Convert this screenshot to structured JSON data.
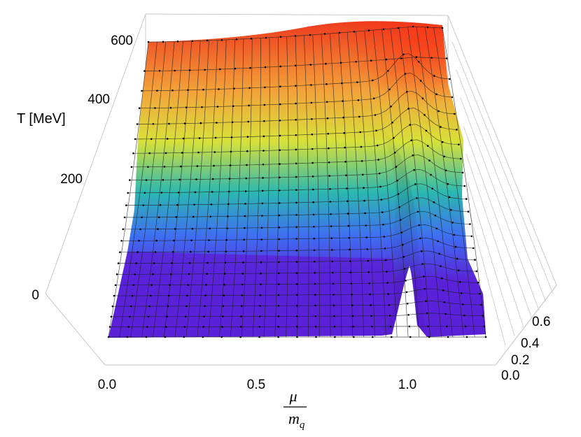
{
  "chart_data": {
    "type": "surface",
    "title": "",
    "zlabel": "T [MeV]",
    "xlabel_numerator": "μ",
    "xlabel_denominator_main": "m",
    "xlabel_denominator_sub": "q",
    "ylabel": "",
    "x_ticks": [
      "0.0",
      "0.5",
      "1.0"
    ],
    "y_ticks": [
      "0.0",
      "0.2",
      "0.4",
      "0.6"
    ],
    "z_ticks": [
      "0",
      "200",
      "400",
      "600"
    ],
    "x_range": [
      0,
      1.2
    ],
    "y_range": [
      0,
      0.7
    ],
    "z_range": [
      0,
      650
    ],
    "colormap": [
      "#5a1fd6",
      "#3f6ef2",
      "#2bb8b0",
      "#d8e13a",
      "#f3a23a",
      "#ee3b1f"
    ],
    "description_of_surface": "T rises with the second parameter; sharp ridge near mu/m_q ≈ 1.0",
    "profiles_mu": [
      0.0,
      0.1,
      0.2,
      0.3,
      0.4,
      0.5,
      0.6,
      0.7,
      0.8,
      0.85,
      0.9,
      0.95,
      1.0,
      1.05,
      1.1,
      1.2
    ],
    "profiles_T_at_y_max": [
      590,
      592,
      595,
      600,
      605,
      610,
      615,
      620,
      625,
      628,
      630,
      630,
      625,
      620,
      615,
      610
    ]
  }
}
